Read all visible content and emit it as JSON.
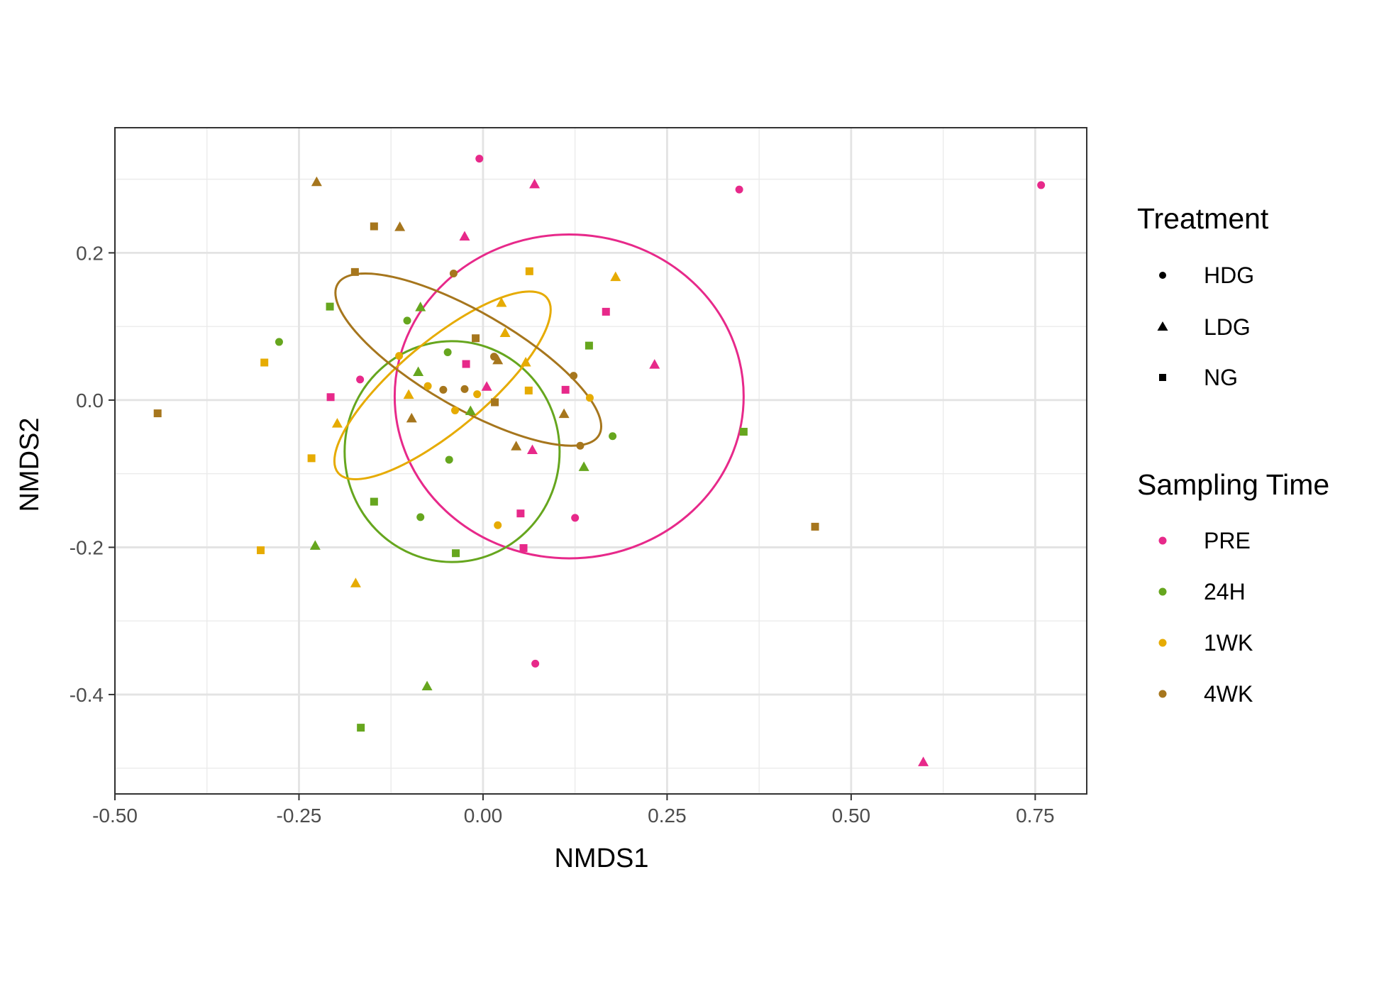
{
  "chart_data": {
    "type": "scatter",
    "title": "",
    "xlabel": "NMDS1",
    "ylabel": "NMDS2",
    "xlim": [
      -0.5,
      0.82
    ],
    "ylim": [
      -0.535,
      0.37
    ],
    "x_ticks": [
      -0.5,
      -0.25,
      0.0,
      0.25,
      0.5,
      0.75
    ],
    "x_tick_labels": [
      "-0.50",
      "-0.25",
      "0.00",
      "0.25",
      "0.50",
      "0.75"
    ],
    "y_ticks": [
      -0.4,
      -0.2,
      0.0,
      0.2
    ],
    "y_tick_labels": [
      "-0.4",
      "-0.2",
      "0.0",
      "0.2"
    ],
    "grid": true,
    "legend_position": "right",
    "shape_legend": {
      "title": "Treatment",
      "items": [
        {
          "label": "HDG",
          "shape": "circle"
        },
        {
          "label": "LDG",
          "shape": "triangle"
        },
        {
          "label": "NG",
          "shape": "square"
        }
      ]
    },
    "color_legend": {
      "title": "Sampling Time",
      "items": [
        {
          "label": "PRE",
          "color": "#E7298A"
        },
        {
          "label": "24H",
          "color": "#66A61E"
        },
        {
          "label": "1WK",
          "color": "#E6AB02"
        },
        {
          "label": "4WK",
          "color": "#A6761D"
        }
      ]
    },
    "points": [
      {
        "x": -0.005,
        "y": 0.328,
        "treatment": "HDG",
        "time": "PRE"
      },
      {
        "x": 0.348,
        "y": 0.286,
        "treatment": "HDG",
        "time": "PRE"
      },
      {
        "x": 0.758,
        "y": 0.292,
        "treatment": "HDG",
        "time": "PRE"
      },
      {
        "x": -0.167,
        "y": 0.028,
        "treatment": "HDG",
        "time": "PRE"
      },
      {
        "x": 0.125,
        "y": -0.16,
        "treatment": "HDG",
        "time": "PRE"
      },
      {
        "x": 0.071,
        "y": -0.358,
        "treatment": "HDG",
        "time": "PRE"
      },
      {
        "x": 0.07,
        "y": 0.293,
        "treatment": "LDG",
        "time": "PRE"
      },
      {
        "x": -0.025,
        "y": 0.222,
        "treatment": "LDG",
        "time": "PRE"
      },
      {
        "x": 0.233,
        "y": 0.048,
        "treatment": "LDG",
        "time": "PRE"
      },
      {
        "x": 0.005,
        "y": 0.018,
        "treatment": "LDG",
        "time": "PRE"
      },
      {
        "x": 0.067,
        "y": -0.068,
        "treatment": "LDG",
        "time": "PRE"
      },
      {
        "x": 0.598,
        "y": -0.492,
        "treatment": "LDG",
        "time": "PRE"
      },
      {
        "x": 0.167,
        "y": 0.12,
        "treatment": "NG",
        "time": "PRE"
      },
      {
        "x": -0.023,
        "y": 0.049,
        "treatment": "NG",
        "time": "PRE"
      },
      {
        "x": 0.112,
        "y": 0.014,
        "treatment": "NG",
        "time": "PRE"
      },
      {
        "x": -0.207,
        "y": 0.004,
        "treatment": "NG",
        "time": "PRE"
      },
      {
        "x": 0.051,
        "y": -0.154,
        "treatment": "NG",
        "time": "PRE"
      },
      {
        "x": 0.055,
        "y": -0.201,
        "treatment": "NG",
        "time": "PRE"
      },
      {
        "x": -0.277,
        "y": 0.079,
        "treatment": "HDG",
        "time": "24H"
      },
      {
        "x": -0.103,
        "y": 0.108,
        "treatment": "HDG",
        "time": "24H"
      },
      {
        "x": -0.048,
        "y": 0.065,
        "treatment": "HDG",
        "time": "24H"
      },
      {
        "x": 0.176,
        "y": -0.049,
        "treatment": "HDG",
        "time": "24H"
      },
      {
        "x": -0.046,
        "y": -0.081,
        "treatment": "HDG",
        "time": "24H"
      },
      {
        "x": -0.085,
        "y": -0.159,
        "treatment": "HDG",
        "time": "24H"
      },
      {
        "x": -0.085,
        "y": 0.126,
        "treatment": "LDG",
        "time": "24H"
      },
      {
        "x": -0.088,
        "y": 0.038,
        "treatment": "LDG",
        "time": "24H"
      },
      {
        "x": -0.017,
        "y": -0.015,
        "treatment": "LDG",
        "time": "24H"
      },
      {
        "x": 0.137,
        "y": -0.091,
        "treatment": "LDG",
        "time": "24H"
      },
      {
        "x": -0.228,
        "y": -0.198,
        "treatment": "LDG",
        "time": "24H"
      },
      {
        "x": -0.076,
        "y": -0.389,
        "treatment": "LDG",
        "time": "24H"
      },
      {
        "x": -0.208,
        "y": 0.127,
        "treatment": "NG",
        "time": "24H"
      },
      {
        "x": 0.144,
        "y": 0.074,
        "treatment": "NG",
        "time": "24H"
      },
      {
        "x": 0.354,
        "y": -0.043,
        "treatment": "NG",
        "time": "24H"
      },
      {
        "x": -0.148,
        "y": -0.138,
        "treatment": "NG",
        "time": "24H"
      },
      {
        "x": -0.037,
        "y": -0.208,
        "treatment": "NG",
        "time": "24H"
      },
      {
        "x": -0.166,
        "y": -0.445,
        "treatment": "NG",
        "time": "24H"
      },
      {
        "x": -0.114,
        "y": 0.06,
        "treatment": "HDG",
        "time": "1WK"
      },
      {
        "x": -0.075,
        "y": 0.019,
        "treatment": "HDG",
        "time": "1WK"
      },
      {
        "x": -0.008,
        "y": 0.008,
        "treatment": "HDG",
        "time": "1WK"
      },
      {
        "x": 0.145,
        "y": 0.003,
        "treatment": "HDG",
        "time": "1WK"
      },
      {
        "x": -0.038,
        "y": -0.014,
        "treatment": "HDG",
        "time": "1WK"
      },
      {
        "x": 0.02,
        "y": -0.17,
        "treatment": "HDG",
        "time": "1WK"
      },
      {
        "x": 0.18,
        "y": 0.167,
        "treatment": "LDG",
        "time": "1WK"
      },
      {
        "x": 0.025,
        "y": 0.132,
        "treatment": "LDG",
        "time": "1WK"
      },
      {
        "x": 0.03,
        "y": 0.091,
        "treatment": "LDG",
        "time": "1WK"
      },
      {
        "x": 0.058,
        "y": 0.051,
        "treatment": "LDG",
        "time": "1WK"
      },
      {
        "x": -0.101,
        "y": 0.007,
        "treatment": "LDG",
        "time": "1WK"
      },
      {
        "x": -0.198,
        "y": -0.032,
        "treatment": "LDG",
        "time": "1WK"
      },
      {
        "x": -0.173,
        "y": -0.249,
        "treatment": "LDG",
        "time": "1WK"
      },
      {
        "x": 0.063,
        "y": 0.175,
        "treatment": "NG",
        "time": "1WK"
      },
      {
        "x": -0.297,
        "y": 0.051,
        "treatment": "NG",
        "time": "1WK"
      },
      {
        "x": 0.062,
        "y": 0.013,
        "treatment": "NG",
        "time": "1WK"
      },
      {
        "x": -0.233,
        "y": -0.079,
        "treatment": "NG",
        "time": "1WK"
      },
      {
        "x": -0.302,
        "y": -0.204,
        "treatment": "NG",
        "time": "1WK"
      },
      {
        "x": -0.04,
        "y": 0.172,
        "treatment": "HDG",
        "time": "4WK"
      },
      {
        "x": 0.015,
        "y": 0.059,
        "treatment": "HDG",
        "time": "4WK"
      },
      {
        "x": 0.123,
        "y": 0.033,
        "treatment": "HDG",
        "time": "4WK"
      },
      {
        "x": -0.054,
        "y": 0.014,
        "treatment": "HDG",
        "time": "4WK"
      },
      {
        "x": -0.025,
        "y": 0.015,
        "treatment": "HDG",
        "time": "4WK"
      },
      {
        "x": 0.132,
        "y": -0.062,
        "treatment": "HDG",
        "time": "4WK"
      },
      {
        "x": -0.226,
        "y": 0.296,
        "treatment": "LDG",
        "time": "4WK"
      },
      {
        "x": -0.113,
        "y": 0.235,
        "treatment": "LDG",
        "time": "4WK"
      },
      {
        "x": 0.02,
        "y": 0.054,
        "treatment": "LDG",
        "time": "4WK"
      },
      {
        "x": 0.11,
        "y": -0.019,
        "treatment": "LDG",
        "time": "4WK"
      },
      {
        "x": -0.097,
        "y": -0.025,
        "treatment": "LDG",
        "time": "4WK"
      },
      {
        "x": 0.045,
        "y": -0.063,
        "treatment": "LDG",
        "time": "4WK"
      },
      {
        "x": -0.148,
        "y": 0.236,
        "treatment": "NG",
        "time": "4WK"
      },
      {
        "x": -0.174,
        "y": 0.174,
        "treatment": "NG",
        "time": "4WK"
      },
      {
        "x": -0.01,
        "y": 0.084,
        "treatment": "NG",
        "time": "4WK"
      },
      {
        "x": 0.016,
        "y": -0.003,
        "treatment": "NG",
        "time": "4WK"
      },
      {
        "x": -0.442,
        "y": -0.018,
        "treatment": "NG",
        "time": "4WK"
      },
      {
        "x": 0.451,
        "y": -0.172,
        "treatment": "NG",
        "time": "4WK"
      }
    ],
    "ellipses": [
      {
        "time": "PRE",
        "cx": 0.117,
        "cy": 0.005,
        "rx": 0.237,
        "ry": 0.22,
        "angle": 0
      },
      {
        "time": "24H",
        "cx": -0.042,
        "cy": -0.07,
        "rx": 0.146,
        "ry": 0.15,
        "angle": 0
      },
      {
        "time": "1WK",
        "cx": -0.055,
        "cy": 0.02,
        "rx": 0.185,
        "ry": 0.06,
        "angle": 40
      },
      {
        "time": "4WK",
        "cx": -0.02,
        "cy": 0.055,
        "rx": 0.205,
        "ry": 0.065,
        "angle": -30
      }
    ]
  }
}
